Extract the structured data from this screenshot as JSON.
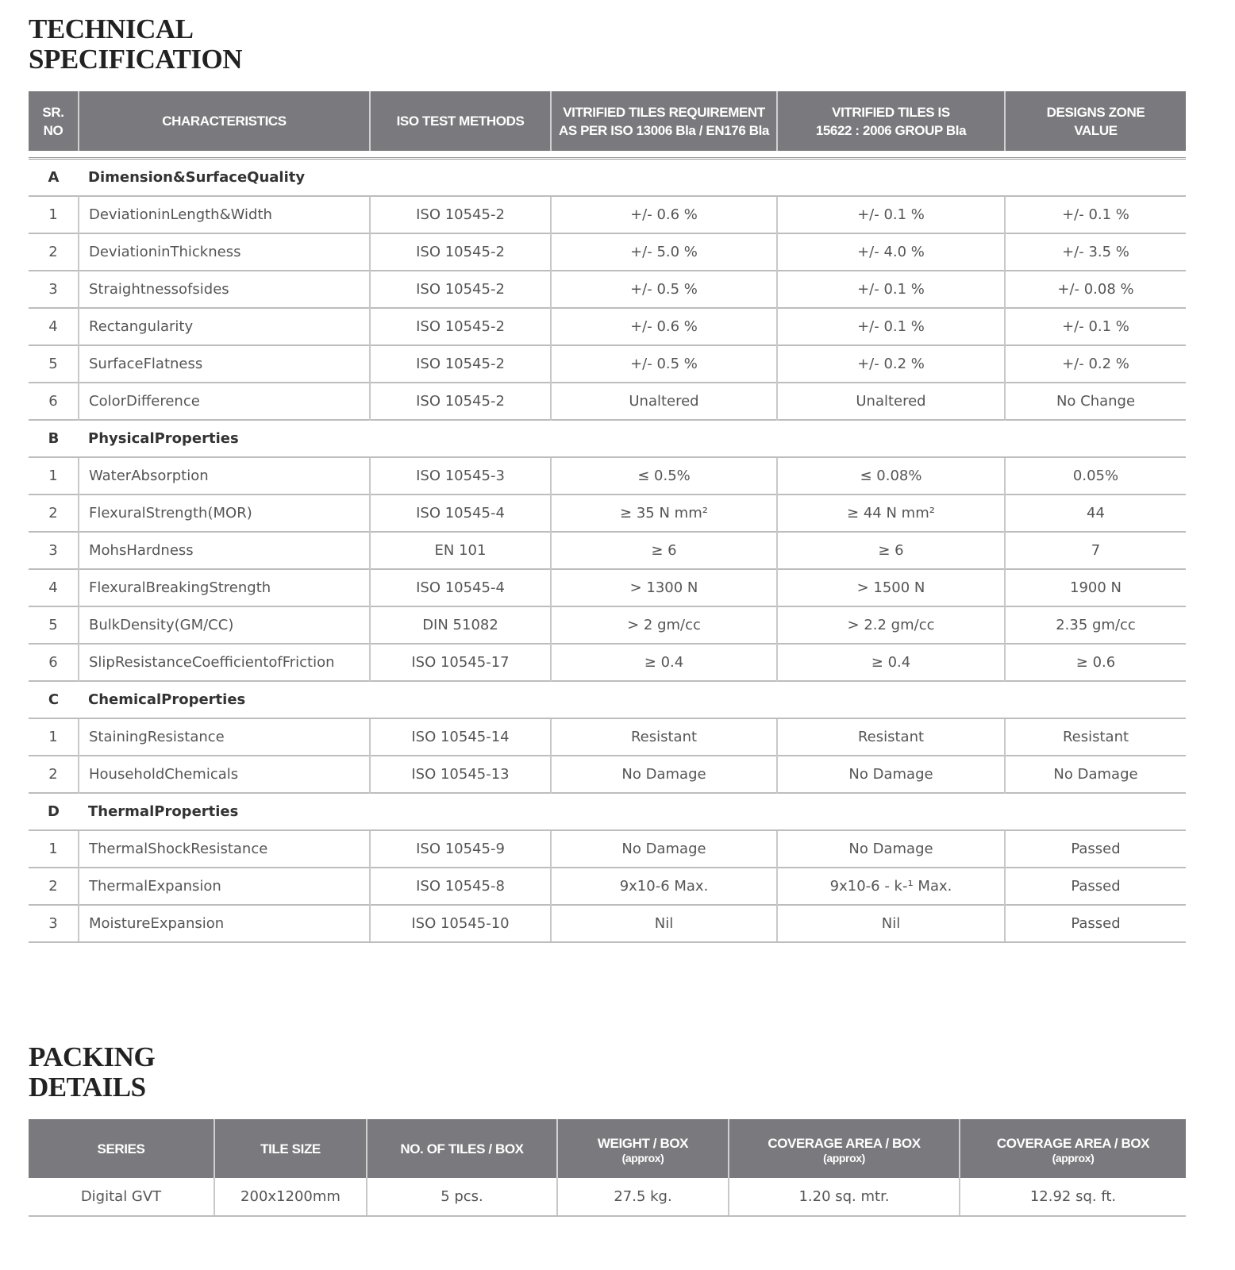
{
  "spec": {
    "title_line1": "TECHNICAL",
    "title_line2": "SPECIFICATION",
    "headers": [
      {
        "l1": "SR.",
        "l2": "NO"
      },
      {
        "l1": "CHARACTERISTICS",
        "l2": ""
      },
      {
        "l1": "ISO TEST METHODS",
        "l2": ""
      },
      {
        "l1": "VITRIFIED TILES REQUIREMENT",
        "l2": "AS PER ISO 13006 Bla / EN176 Bla"
      },
      {
        "l1": "VITRIFIED TILES IS",
        "l2": "15622 : 2006 GROUP Bla"
      },
      {
        "l1": "DESIGNS ZONE",
        "l2": "VALUE"
      }
    ],
    "sections": [
      {
        "id": "A",
        "name": "Dimension&SurfaceQuality",
        "rows": [
          [
            "1",
            "DeviationinLength&Width",
            "ISO 10545-2",
            "+/- 0.6 %",
            "+/- 0.1 %",
            "+/- 0.1 %"
          ],
          [
            "2",
            "DeviationinThickness",
            "ISO 10545-2",
            "+/- 5.0 %",
            "+/- 4.0 %",
            "+/- 3.5 %"
          ],
          [
            "3",
            "Straightnessofsides",
            "ISO 10545-2",
            "+/- 0.5 %",
            "+/- 0.1 %",
            "+/- 0.08 %"
          ],
          [
            "4",
            "Rectangularity",
            "ISO 10545-2",
            "+/- 0.6 %",
            "+/- 0.1 %",
            "+/- 0.1 %"
          ],
          [
            "5",
            "SurfaceFlatness",
            "ISO 10545-2",
            "+/- 0.5 %",
            "+/- 0.2 %",
            "+/- 0.2 %"
          ],
          [
            "6",
            "ColorDifference",
            "ISO 10545-2",
            "Unaltered",
            "Unaltered",
            "No Change"
          ]
        ]
      },
      {
        "id": "B",
        "name": "PhysicalProperties",
        "rows": [
          [
            "1",
            "WaterAbsorption",
            "ISO 10545-3",
            "≤ 0.5%",
            "≤ 0.08%",
            "0.05%"
          ],
          [
            "2",
            "FlexuralStrength(MOR)",
            "ISO 10545-4",
            "≥ 35 N mm²",
            "≥ 44 N mm²",
            "44"
          ],
          [
            "3",
            "MohsHardness",
            "EN 101",
            "≥ 6",
            "≥ 6",
            "7"
          ],
          [
            "4",
            "FlexuralBreakingStrength",
            "ISO 10545-4",
            "> 1300 N",
            "> 1500 N",
            "1900 N"
          ],
          [
            "5",
            "BulkDensity(GM/CC)",
            "DIN 51082",
            "> 2 gm/cc",
            "> 2.2 gm/cc",
            "2.35 gm/cc"
          ],
          [
            "6",
            "SlipResistanceCoefficientofFriction",
            "ISO 10545-17",
            "≥ 0.4",
            "≥ 0.4",
            "≥ 0.6"
          ]
        ]
      },
      {
        "id": "C",
        "name": "ChemicalProperties",
        "rows": [
          [
            "1",
            "StainingResistance",
            "ISO 10545-14",
            "Resistant",
            "Resistant",
            "Resistant"
          ],
          [
            "2",
            "HouseholdChemicals",
            "ISO 10545-13",
            "No Damage",
            "No Damage",
            "No Damage"
          ]
        ]
      },
      {
        "id": "D",
        "name": "ThermalProperties",
        "rows": [
          [
            "1",
            "ThermalShockResistance",
            "ISO 10545-9",
            "No Damage",
            "No Damage",
            "Passed"
          ],
          [
            "2",
            "ThermalExpansion",
            "ISO 10545-8",
            "9x10-6 Max.",
            "9x10-6 - k-¹ Max.",
            "Passed"
          ],
          [
            "3",
            "MoistureExpansion",
            "ISO 10545-10",
            "Nil",
            "Nil",
            "Passed"
          ]
        ]
      }
    ]
  },
  "packing": {
    "title_line1": "PACKING",
    "title_line2": "DETAILS",
    "headers": [
      {
        "l1": "SERIES",
        "l2": ""
      },
      {
        "l1": "TILE SIZE",
        "l2": ""
      },
      {
        "l1": "NO. OF TILES / BOX",
        "l2": ""
      },
      {
        "l1": "WEIGHT / BOX",
        "l2": "(approx)"
      },
      {
        "l1": "COVERAGE AREA / BOX",
        "l2": "(approx)"
      },
      {
        "l1": "COVERAGE AREA / BOX",
        "l2": "(approx)"
      }
    ],
    "rows": [
      [
        "Digital GVT",
        "200x1200mm",
        "5 pcs.",
        "27.5 kg.",
        "1.20 sq. mtr.",
        "12.92 sq. ft."
      ]
    ]
  },
  "colors": {
    "header_bg": "#7a7a7e",
    "header_text": "#ffffff",
    "body_text": "#555555"
  }
}
